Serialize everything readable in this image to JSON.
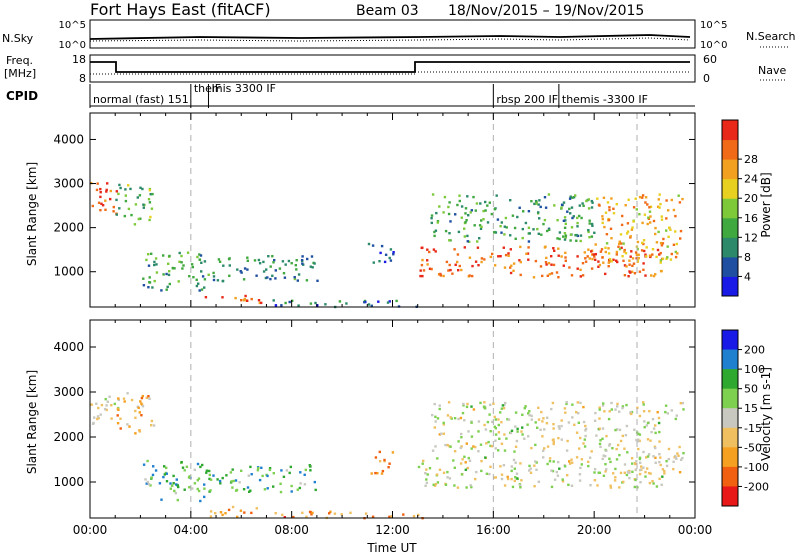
{
  "header": {
    "station": "Fort Hays East (fitACF)",
    "beam": "Beam 03",
    "dates": "18/Nov/2015 – 19/Nov/2015"
  },
  "noise_panel": {
    "left_label": "N.Sky",
    "right_label": "N.Search",
    "left_ticks": [
      "10^5",
      "10^0"
    ],
    "right_ticks": [
      "10^5",
      "10^0"
    ]
  },
  "freq_panel": {
    "left_label_1": "Freq.",
    "left_label_2": "[MHz]",
    "right_label": "Nave",
    "left_ticks": [
      "18",
      "8"
    ],
    "right_ticks": [
      "60",
      "0"
    ]
  },
  "cpid": {
    "label": "CPID",
    "segments": [
      {
        "text": "normal (fast) 151",
        "start_hour": 0
      },
      {
        "text": "themis 3300 IF",
        "start_hour": 4
      },
      {
        "text": "IF",
        "start_hour": 4.7
      },
      {
        "text": "rbsp 200 IF",
        "start_hour": 16
      },
      {
        "text": "themis -3300 IF",
        "start_hour": 18.6
      }
    ]
  },
  "colors": {
    "power": [
      "#1a1ae6",
      "#1f4fa0",
      "#2c8a6a",
      "#3fa83f",
      "#7dc93a",
      "#e8d020",
      "#f2a020",
      "#f06a18",
      "#e82818"
    ],
    "velocity": [
      "#1a1ae6",
      "#2080d0",
      "#2ea82e",
      "#7ed050",
      "#c8c8c0",
      "#f0c060",
      "#f5a020",
      "#f06010",
      "#e81818"
    ]
  },
  "chart_data": [
    {
      "type": "heatmap",
      "name": "power",
      "ylabel": "Slant Range [km]",
      "colorbar_label": "Power [dB]",
      "colorbar_ticks": [
        "4",
        "8",
        "12",
        "16",
        "20",
        "24",
        "28"
      ],
      "yticks": [
        1000,
        2000,
        3000,
        4000
      ],
      "ylim": [
        200,
        4600
      ],
      "xlim_hours": [
        0,
        24
      ],
      "echo_regions": [
        {
          "t": [
            0,
            1.1
          ],
          "r": [
            2300,
            3100
          ],
          "level": 0.85
        },
        {
          "t": [
            1.0,
            2.5
          ],
          "r": [
            2100,
            3000
          ],
          "level": 0.4
        },
        {
          "t": [
            2.0,
            4.5
          ],
          "r": [
            600,
            1500
          ],
          "level": 0.35
        },
        {
          "t": [
            4.3,
            9.0
          ],
          "r": [
            800,
            1400
          ],
          "level": 0.3
        },
        {
          "t": [
            4.5,
            6.8
          ],
          "r": [
            250,
            480
          ],
          "level": 0.85
        },
        {
          "t": [
            7.0,
            13.2
          ],
          "r": [
            220,
            380
          ],
          "level": 0.25
        },
        {
          "t": [
            11.0,
            12.0
          ],
          "r": [
            1200,
            1700
          ],
          "level": 0.2
        },
        {
          "t": [
            13.0,
            22.8
          ],
          "r": [
            900,
            1600
          ],
          "level": 0.85
        },
        {
          "t": [
            13.5,
            20.0
          ],
          "r": [
            1700,
            2800
          ],
          "level": 0.35
        },
        {
          "t": [
            20.0,
            23.5
          ],
          "r": [
            1200,
            2800
          ],
          "level": 0.7
        }
      ]
    },
    {
      "type": "heatmap",
      "name": "velocity",
      "xlabel": "Time UT",
      "ylabel": "Slant Range [km]",
      "colorbar_label": "Velocity [m s-1]",
      "colorbar_ticks": [
        "200",
        "100",
        "50",
        "15",
        "-15",
        "-50",
        "-100",
        "-200"
      ],
      "xticks": [
        "00:00",
        "04:00",
        "08:00",
        "12:00",
        "16:00",
        "20:00",
        "00:00"
      ],
      "yticks": [
        1000,
        2000,
        3000,
        4000
      ],
      "ylim": [
        200,
        4600
      ],
      "xlim_hours": [
        0,
        24
      ],
      "echo_regions": [
        {
          "t": [
            0,
            1.1
          ],
          "r": [
            2300,
            3100
          ],
          "level": 0.5
        },
        {
          "t": [
            1.0,
            2.5
          ],
          "r": [
            2100,
            3000
          ],
          "level": 0.65
        },
        {
          "t": [
            2.0,
            4.5
          ],
          "r": [
            600,
            1500
          ],
          "level": 0.3
        },
        {
          "t": [
            4.3,
            9.0
          ],
          "r": [
            800,
            1400
          ],
          "level": 0.3
        },
        {
          "t": [
            4.5,
            6.8
          ],
          "r": [
            250,
            480
          ],
          "level": 0.72
        },
        {
          "t": [
            7.0,
            13.2
          ],
          "r": [
            220,
            380
          ],
          "level": 0.72
        },
        {
          "t": [
            11.0,
            12.0
          ],
          "r": [
            1200,
            1700
          ],
          "level": 0.72
        },
        {
          "t": [
            13.0,
            22.8
          ],
          "r": [
            900,
            1600
          ],
          "level": 0.5
        },
        {
          "t": [
            13.5,
            20.0
          ],
          "r": [
            1700,
            2800
          ],
          "level": 0.5
        },
        {
          "t": [
            20.0,
            23.5
          ],
          "r": [
            1200,
            2800
          ],
          "level": 0.5
        }
      ]
    }
  ]
}
